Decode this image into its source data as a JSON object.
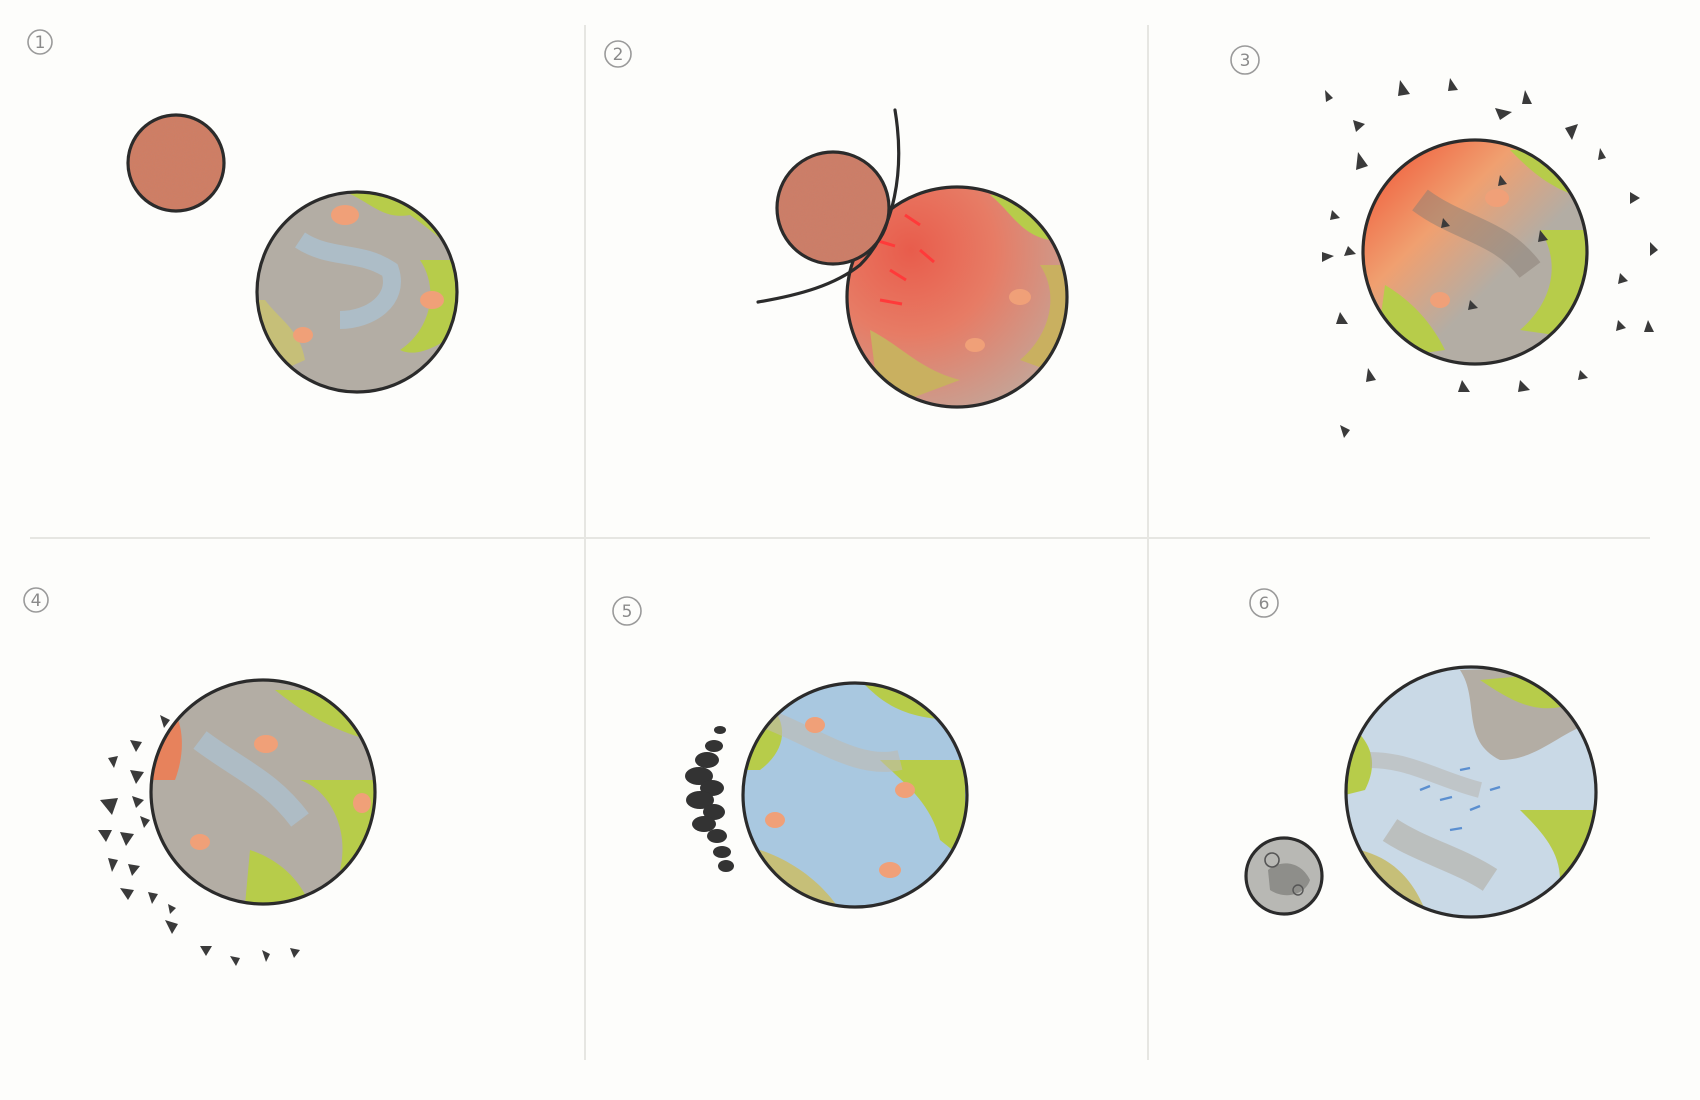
{
  "panels": [
    {
      "label": "1"
    },
    {
      "label": "2"
    },
    {
      "label": "3"
    },
    {
      "label": "4"
    },
    {
      "label": "5"
    },
    {
      "label": "6"
    }
  ],
  "colors": {
    "pencil_outline": "#2b2b2b",
    "impactor_orange": "#d9785a",
    "molten_red": "#f05a4a",
    "rock_grey": "#b3ada4",
    "land_green": "#b7cc4a",
    "ocean_blue": "#a9c8e0",
    "lava_spot": "#f0a078",
    "debris": "#3a3a3a",
    "moon_grey": "#9a9a96"
  },
  "icons": [
    "circled-number-icon",
    "planet-icon",
    "impactor-icon",
    "debris-icon",
    "moon-icon"
  ]
}
